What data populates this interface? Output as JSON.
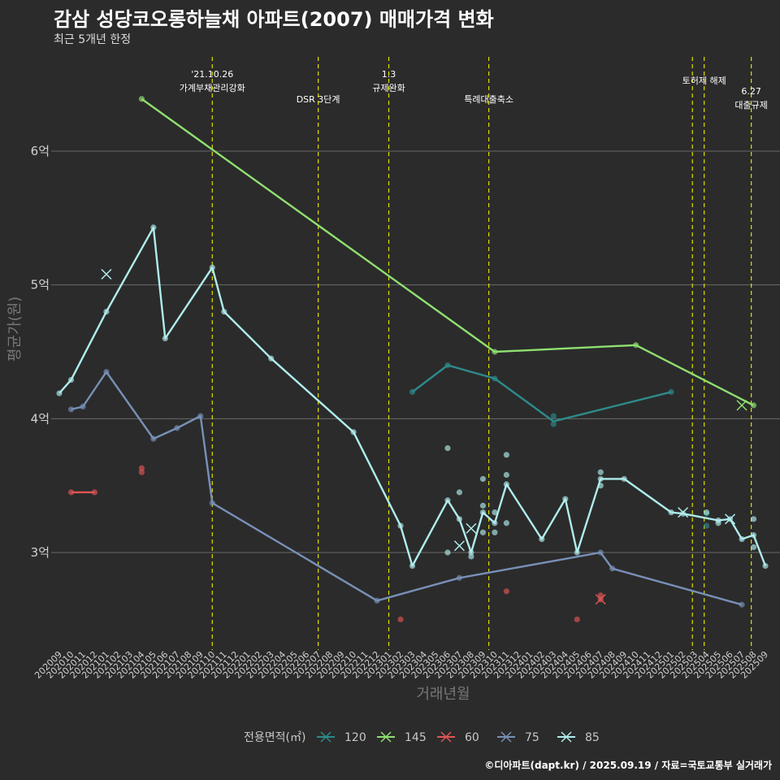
{
  "title": "감삼 성당코오롱하늘채 아파트(2007) 매매가격 변화",
  "subtitle": "최근 5개년 한정",
  "caption": "©디아파트(dapt.kr) / 2025.09.19 / 자료=국토교통부 실거래가",
  "colors": {
    "background": "#2b2b2b",
    "grid": "#6a6a6a",
    "event_line": "#e0e000",
    "s120": "#2e8b8b",
    "s145": "#90e070",
    "s60": "#e05555",
    "s75": "#7890b8",
    "s85": "#b0ecec"
  },
  "chart_data": {
    "type": "line",
    "xlabel": "거래년월",
    "ylabel": "평균가(원)",
    "ylim": [
      2.3,
      6.75
    ],
    "yticks": [
      {
        "value": 3,
        "label": "3억"
      },
      {
        "value": 4,
        "label": "4억"
      },
      {
        "value": 5,
        "label": "5억"
      },
      {
        "value": 6,
        "label": "6억"
      }
    ],
    "categories": [
      "202009",
      "202010",
      "202011",
      "202012",
      "202101",
      "202102",
      "202103",
      "202104",
      "202105",
      "202106",
      "202107",
      "202108",
      "202109",
      "202110",
      "202111",
      "202112",
      "202201",
      "202202",
      "202203",
      "202204",
      "202205",
      "202206",
      "202207",
      "202208",
      "202209",
      "202210",
      "202211",
      "202212",
      "202301",
      "202302",
      "202303",
      "202304",
      "202305",
      "202306",
      "202307",
      "202308",
      "202309",
      "202310",
      "202311",
      "202312",
      "202401",
      "202402",
      "202403",
      "202404",
      "202405",
      "202406",
      "202407",
      "202408",
      "202409",
      "202410",
      "202411",
      "202412",
      "202501",
      "202502",
      "202503",
      "202504",
      "202505",
      "202506",
      "202507",
      "202508",
      "202509"
    ],
    "legend_title": "전용면적(㎡)",
    "legend_position": "bottom",
    "events": [
      {
        "x": 13,
        "label": "'21.10.26\n가계부채관리강화",
        "row": 1
      },
      {
        "x": 22,
        "label": "DSR 3단계",
        "row": 2
      },
      {
        "x": 28,
        "label": "1.3\n규제완화",
        "row": 1
      },
      {
        "x": 36.5,
        "label": "특례대출축소",
        "row": 2
      },
      {
        "x": 53.8,
        "label": "",
        "row": 0
      },
      {
        "x": 54.8,
        "label": "토허제 해제",
        "row": 0
      },
      {
        "x": 58.8,
        "label": "6.27\n대출규제",
        "row": 3
      }
    ],
    "series": [
      {
        "name": "120",
        "color_key": "s120",
        "line": [
          [
            30,
            4.2
          ],
          [
            33,
            4.4
          ],
          [
            37,
            4.3
          ],
          [
            42,
            3.98
          ],
          [
            52,
            4.2
          ]
        ],
        "points": [
          [
            30,
            4.2
          ],
          [
            33,
            4.4
          ],
          [
            37,
            4.3
          ],
          [
            42,
            4.02
          ],
          [
            42,
            3.96
          ],
          [
            52,
            4.2
          ],
          [
            55,
            3.29
          ],
          [
            55,
            3.2
          ]
        ],
        "crosses": []
      },
      {
        "name": "145",
        "color_key": "s145",
        "line": [
          [
            7,
            6.39
          ],
          [
            37,
            4.5
          ],
          [
            49,
            4.55
          ],
          [
            59,
            4.1
          ]
        ],
        "points": [
          [
            7,
            6.39
          ],
          [
            37,
            4.5
          ],
          [
            49,
            4.55
          ],
          [
            59,
            4.1
          ]
        ],
        "crosses": [
          [
            58,
            4.1
          ]
        ]
      },
      {
        "name": "60",
        "color_key": "s60",
        "line": [
          [
            1,
            3.45
          ],
          [
            3,
            3.45
          ]
        ],
        "points": [
          [
            1,
            3.45
          ],
          [
            3,
            3.45
          ],
          [
            7,
            3.63
          ],
          [
            7,
            3.6
          ],
          [
            29,
            2.5
          ],
          [
            38,
            2.71
          ],
          [
            44,
            2.5
          ],
          [
            46,
            2.68
          ],
          [
            46,
            2.65
          ]
        ],
        "crosses": [
          [
            46,
            2.65
          ]
        ]
      },
      {
        "name": "75",
        "color_key": "s75",
        "line": [
          [
            1,
            4.07
          ],
          [
            2,
            4.09
          ],
          [
            4,
            4.35
          ],
          [
            8,
            3.85
          ],
          [
            10,
            3.93
          ],
          [
            12,
            4.02
          ],
          [
            13,
            3.37
          ],
          [
            27,
            2.64
          ],
          [
            34,
            2.81
          ],
          [
            46,
            3.0
          ],
          [
            47,
            2.88
          ],
          [
            58,
            2.61
          ]
        ],
        "points": [
          [
            1,
            4.07
          ],
          [
            2,
            4.09
          ],
          [
            4,
            4.35
          ],
          [
            8,
            3.85
          ],
          [
            10,
            3.93
          ],
          [
            12,
            4.02
          ],
          [
            13,
            3.37
          ],
          [
            27,
            2.64
          ],
          [
            34,
            2.81
          ],
          [
            46,
            3.0
          ],
          [
            47,
            2.88
          ],
          [
            58,
            2.61
          ]
        ],
        "crosses": []
      },
      {
        "name": "85",
        "color_key": "s85",
        "line": [
          [
            0,
            4.19
          ],
          [
            1,
            4.29
          ],
          [
            4,
            4.8
          ],
          [
            8,
            5.43
          ],
          [
            9,
            4.6
          ],
          [
            13,
            5.13
          ],
          [
            14,
            4.8
          ],
          [
            18,
            4.45
          ],
          [
            25,
            3.9
          ],
          [
            29,
            3.2
          ],
          [
            30,
            2.9
          ],
          [
            33,
            3.39
          ],
          [
            34,
            3.25
          ],
          [
            35,
            3.0
          ],
          [
            36,
            3.3
          ],
          [
            37,
            3.22
          ],
          [
            38,
            3.51
          ],
          [
            41,
            3.1
          ],
          [
            43,
            3.4
          ],
          [
            44,
            3.0
          ],
          [
            46,
            3.55
          ],
          [
            48,
            3.55
          ],
          [
            52,
            3.3
          ],
          [
            53,
            3.29
          ],
          [
            56,
            3.24
          ],
          [
            57,
            3.25
          ],
          [
            58,
            3.1
          ],
          [
            59,
            3.13
          ],
          [
            60,
            2.9
          ]
        ],
        "points": [
          [
            0,
            4.19
          ],
          [
            1,
            4.29
          ],
          [
            4,
            4.8
          ],
          [
            8,
            5.43
          ],
          [
            9,
            4.6
          ],
          [
            13,
            5.13
          ],
          [
            14,
            4.8
          ],
          [
            18,
            4.45
          ],
          [
            25,
            3.9
          ],
          [
            29,
            3.2
          ],
          [
            30,
            2.9
          ],
          [
            33,
            3.39
          ],
          [
            33,
            3.0
          ],
          [
            33,
            3.78
          ],
          [
            34,
            3.45
          ],
          [
            34,
            3.25
          ],
          [
            35,
            3.0
          ],
          [
            35,
            2.97
          ],
          [
            36,
            3.3
          ],
          [
            36,
            3.35
          ],
          [
            36,
            3.55
          ],
          [
            36,
            3.15
          ],
          [
            37,
            3.22
          ],
          [
            37,
            3.3
          ],
          [
            37,
            3.15
          ],
          [
            38,
            3.51
          ],
          [
            38,
            3.58
          ],
          [
            38,
            3.73
          ],
          [
            38,
            3.22
          ],
          [
            41,
            3.1
          ],
          [
            43,
            3.4
          ],
          [
            44,
            3.0
          ],
          [
            46,
            3.55
          ],
          [
            46,
            3.6
          ],
          [
            46,
            3.5
          ],
          [
            48,
            3.55
          ],
          [
            52,
            3.3
          ],
          [
            53,
            3.29
          ],
          [
            55,
            3.3
          ],
          [
            56,
            3.24
          ],
          [
            56,
            3.22
          ],
          [
            57,
            3.25
          ],
          [
            58,
            3.1
          ],
          [
            59,
            3.13
          ],
          [
            59,
            3.04
          ],
          [
            59,
            3.25
          ],
          [
            60,
            2.9
          ]
        ],
        "crosses": [
          [
            4,
            5.08
          ],
          [
            34,
            3.05
          ],
          [
            35,
            3.18
          ],
          [
            53,
            3.3
          ],
          [
            57,
            3.25
          ]
        ]
      }
    ]
  }
}
